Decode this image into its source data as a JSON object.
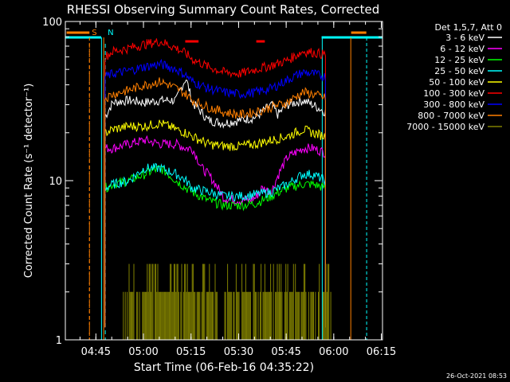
{
  "chart_data": {
    "type": "line",
    "title": "RHESSI Observing Summary Count Rates, Corrected",
    "xlabel": "Start Time (06-Feb-16 04:35:22)",
    "ylabel": "Corrected Count Rate (s⁻¹ detector⁻¹)",
    "y_scale": "log",
    "ylim": [
      1,
      100
    ],
    "xlim_minutes_after_start": [
      0,
      100
    ],
    "x_ticks": [
      {
        "label": "04:45",
        "minutes": 9.63
      },
      {
        "label": "05:00",
        "minutes": 24.63
      },
      {
        "label": "05:15",
        "minutes": 39.63
      },
      {
        "label": "05:30",
        "minutes": 54.63
      },
      {
        "label": "05:45",
        "minutes": 69.63
      },
      {
        "label": "06:00",
        "minutes": 84.63
      },
      {
        "label": "06:15",
        "minutes": 99.63
      }
    ],
    "y_ticks": [
      {
        "label": "1",
        "value": 1
      },
      {
        "label": "10",
        "value": 10
      },
      {
        "label": "100",
        "value": 100
      }
    ],
    "legend_header": "Det 1,5,7, Att 0",
    "legend_position": "right",
    "grid": false,
    "markers": [
      {
        "label": "S",
        "minutes": 7.6,
        "color": "#ff7f00"
      },
      {
        "label": "N",
        "minutes": 12.6,
        "color": "#00ffff"
      }
    ],
    "series": [
      {
        "name": "3 - 6 keV",
        "color": "#ffffff",
        "x": [
          12.5,
          15,
          20,
          25,
          30,
          35,
          38,
          40,
          45,
          50,
          55,
          60,
          65,
          67,
          70,
          75,
          78,
          82
        ],
        "y": [
          25,
          31,
          32,
          31,
          32,
          32,
          44,
          31,
          24,
          23,
          24,
          25,
          30,
          26,
          30,
          32,
          30,
          27
        ]
      },
      {
        "name": "6 - 12 keV",
        "color": "#ff00ff",
        "x": [
          12.5,
          15,
          20,
          25,
          30,
          35,
          38,
          40,
          43,
          45,
          50,
          55,
          58,
          60,
          62,
          65,
          70,
          75,
          78,
          82
        ],
        "y": [
          16,
          16,
          17,
          18,
          17,
          17,
          16,
          16,
          12,
          11,
          7.8,
          7.5,
          7.6,
          7.8,
          9,
          8.5,
          14,
          16,
          16,
          15
        ]
      },
      {
        "name": "12 - 25 keV",
        "color": "#00ff00",
        "x": [
          12.5,
          15,
          20,
          25,
          30,
          35,
          38,
          40,
          45,
          50,
          55,
          60,
          65,
          70,
          75,
          78,
          82
        ],
        "y": [
          9,
          9.5,
          10,
          11,
          12,
          10,
          9,
          8.5,
          7.5,
          7,
          7,
          7.2,
          8,
          9,
          9.5,
          9.5,
          9
        ]
      },
      {
        "name": "25 - 50 keV",
        "color": "#00ffff",
        "x": [
          12.5,
          15,
          20,
          25,
          30,
          35,
          38,
          40,
          45,
          50,
          55,
          60,
          65,
          70,
          75,
          78,
          82
        ],
        "y": [
          9,
          9.5,
          10,
          12,
          12,
          11,
          10,
          9,
          8.5,
          8,
          8,
          8.2,
          8.5,
          9.5,
          11,
          11,
          10
        ]
      },
      {
        "name": "50 - 100 keV",
        "color": "#ffff00",
        "x": [
          12.5,
          15,
          20,
          25,
          30,
          35,
          38,
          40,
          45,
          50,
          55,
          60,
          65,
          70,
          75,
          78,
          82
        ],
        "y": [
          20,
          21,
          22,
          22,
          23,
          21,
          20,
          19,
          17,
          16.5,
          16.5,
          17,
          18,
          19,
          21,
          20,
          19
        ]
      },
      {
        "name": "100 - 300 keV",
        "color": "#ff0000",
        "x": [
          12.5,
          15,
          20,
          25,
          30,
          35,
          38,
          40,
          45,
          50,
          55,
          60,
          65,
          70,
          75,
          78,
          82
        ],
        "y": [
          60,
          65,
          68,
          72,
          75,
          68,
          63,
          58,
          52,
          48,
          47,
          50,
          53,
          57,
          65,
          64,
          62
        ]
      },
      {
        "name": "300 - 800 keV",
        "color": "#0000ff",
        "x": [
          12.5,
          15,
          20,
          25,
          30,
          35,
          38,
          40,
          45,
          50,
          55,
          60,
          65,
          70,
          75,
          78,
          82
        ],
        "y": [
          45,
          47,
          49,
          52,
          54,
          50,
          46,
          42,
          38,
          36,
          35,
          36,
          38,
          43,
          48,
          47,
          45
        ]
      },
      {
        "name": "800 - 7000 keV",
        "color": "#ff7f00",
        "x": [
          12.5,
          15,
          20,
          25,
          30,
          35,
          38,
          40,
          45,
          50,
          55,
          60,
          65,
          70,
          75,
          78,
          82
        ],
        "y": [
          33,
          35,
          37,
          40,
          42,
          38,
          35,
          32,
          29,
          27,
          26,
          27,
          29,
          31,
          36,
          35,
          33
        ]
      },
      {
        "name": "7000 - 15000 keV",
        "color": "#808000",
        "x": [
          18,
          25,
          30,
          35,
          40,
          45,
          50,
          55,
          60,
          65,
          70,
          75,
          80,
          84
        ],
        "y": [
          2,
          2,
          2,
          2,
          2,
          2,
          2,
          2,
          2,
          2,
          2,
          2,
          2,
          2
        ]
      }
    ],
    "attenuator_bars": [
      {
        "color": "#ff0000",
        "x_start": 37.8,
        "x_end": 42.0,
        "y": 75
      },
      {
        "color": "#ff0000",
        "x_start": 60.2,
        "x_end": 62.9,
        "y": 75
      }
    ],
    "spacecraft_night_segments": [
      {
        "color": "#00ffff",
        "x_start": 0,
        "x_end": 11.3
      },
      {
        "color": "#00ffff",
        "x_start": 80.8,
        "x_end": 100
      }
    ],
    "saa_segments": [
      {
        "color": "#ff7f00",
        "x_start": 0.4,
        "x_end": 7.6
      },
      {
        "color": "#ff7f00",
        "x_start": 90.1,
        "x_end": 94.9
      }
    ],
    "timestamp": "26-Oct-2021 08:53"
  }
}
